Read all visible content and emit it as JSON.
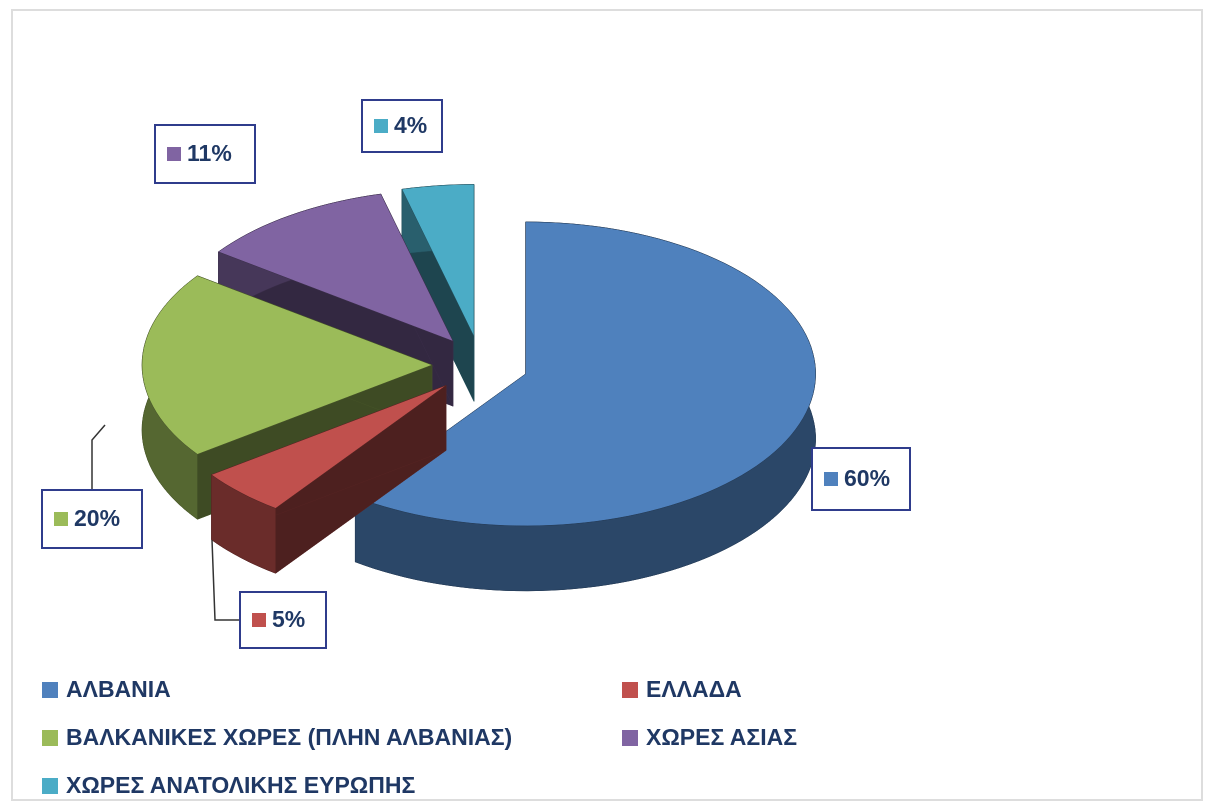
{
  "chart_data": {
    "type": "pie3d",
    "categories": [
      "ΑΛΒΑΝΙΑ",
      "ΕΛΛΑΔΑ",
      "ΒΑΛΚΑΝΙΚΕΣ ΧΩΡΕΣ (ΠΛΗΝ ΑΛΒΑΝΙΑΣ)",
      "ΧΩΡΕΣ ΑΣΙΑΣ",
      "ΧΩΡΕΣ ΑΝΑΤΟΛΙΚΗΣ ΕΥΡΩΠΗΣ"
    ],
    "values": [
      60,
      5,
      20,
      11,
      4
    ],
    "value_labels": [
      "60%",
      "5%",
      "20%",
      "11%",
      "4%"
    ],
    "colors": [
      "#4f81bd",
      "#c0504d",
      "#9bbb59",
      "#8064a2",
      "#4bacc6"
    ],
    "legend": "bottom"
  }
}
